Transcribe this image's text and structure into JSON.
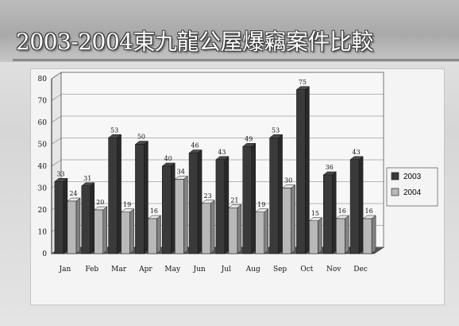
{
  "slide": {
    "title": "2003-2004東九龍公屋爆竊案件比較"
  },
  "chart_data": {
    "type": "bar",
    "title": "2003-2004東九龍公屋爆竊案件比較",
    "xlabel": "",
    "ylabel": "",
    "categories": [
      "Jan",
      "Feb",
      "Mar",
      "Apr",
      "May",
      "Jun",
      "Jul",
      "Aug",
      "Sep",
      "Oct",
      "Nov",
      "Dec"
    ],
    "series": [
      {
        "name": "2003",
        "color": "#3a3a3a",
        "values": [
          33,
          31,
          53,
          50,
          40,
          46,
          43,
          49,
          53,
          75,
          36,
          43
        ]
      },
      {
        "name": "2004",
        "color": "#b8b8b8",
        "values": [
          24,
          20,
          19,
          16,
          34,
          23,
          21,
          19,
          30,
          15,
          16,
          16
        ]
      }
    ],
    "ylim": [
      0,
      80
    ],
    "yticks": [
      0,
      10,
      20,
      30,
      40,
      50,
      60,
      70,
      80
    ],
    "grid": true,
    "three_d": true,
    "legend": "right"
  }
}
